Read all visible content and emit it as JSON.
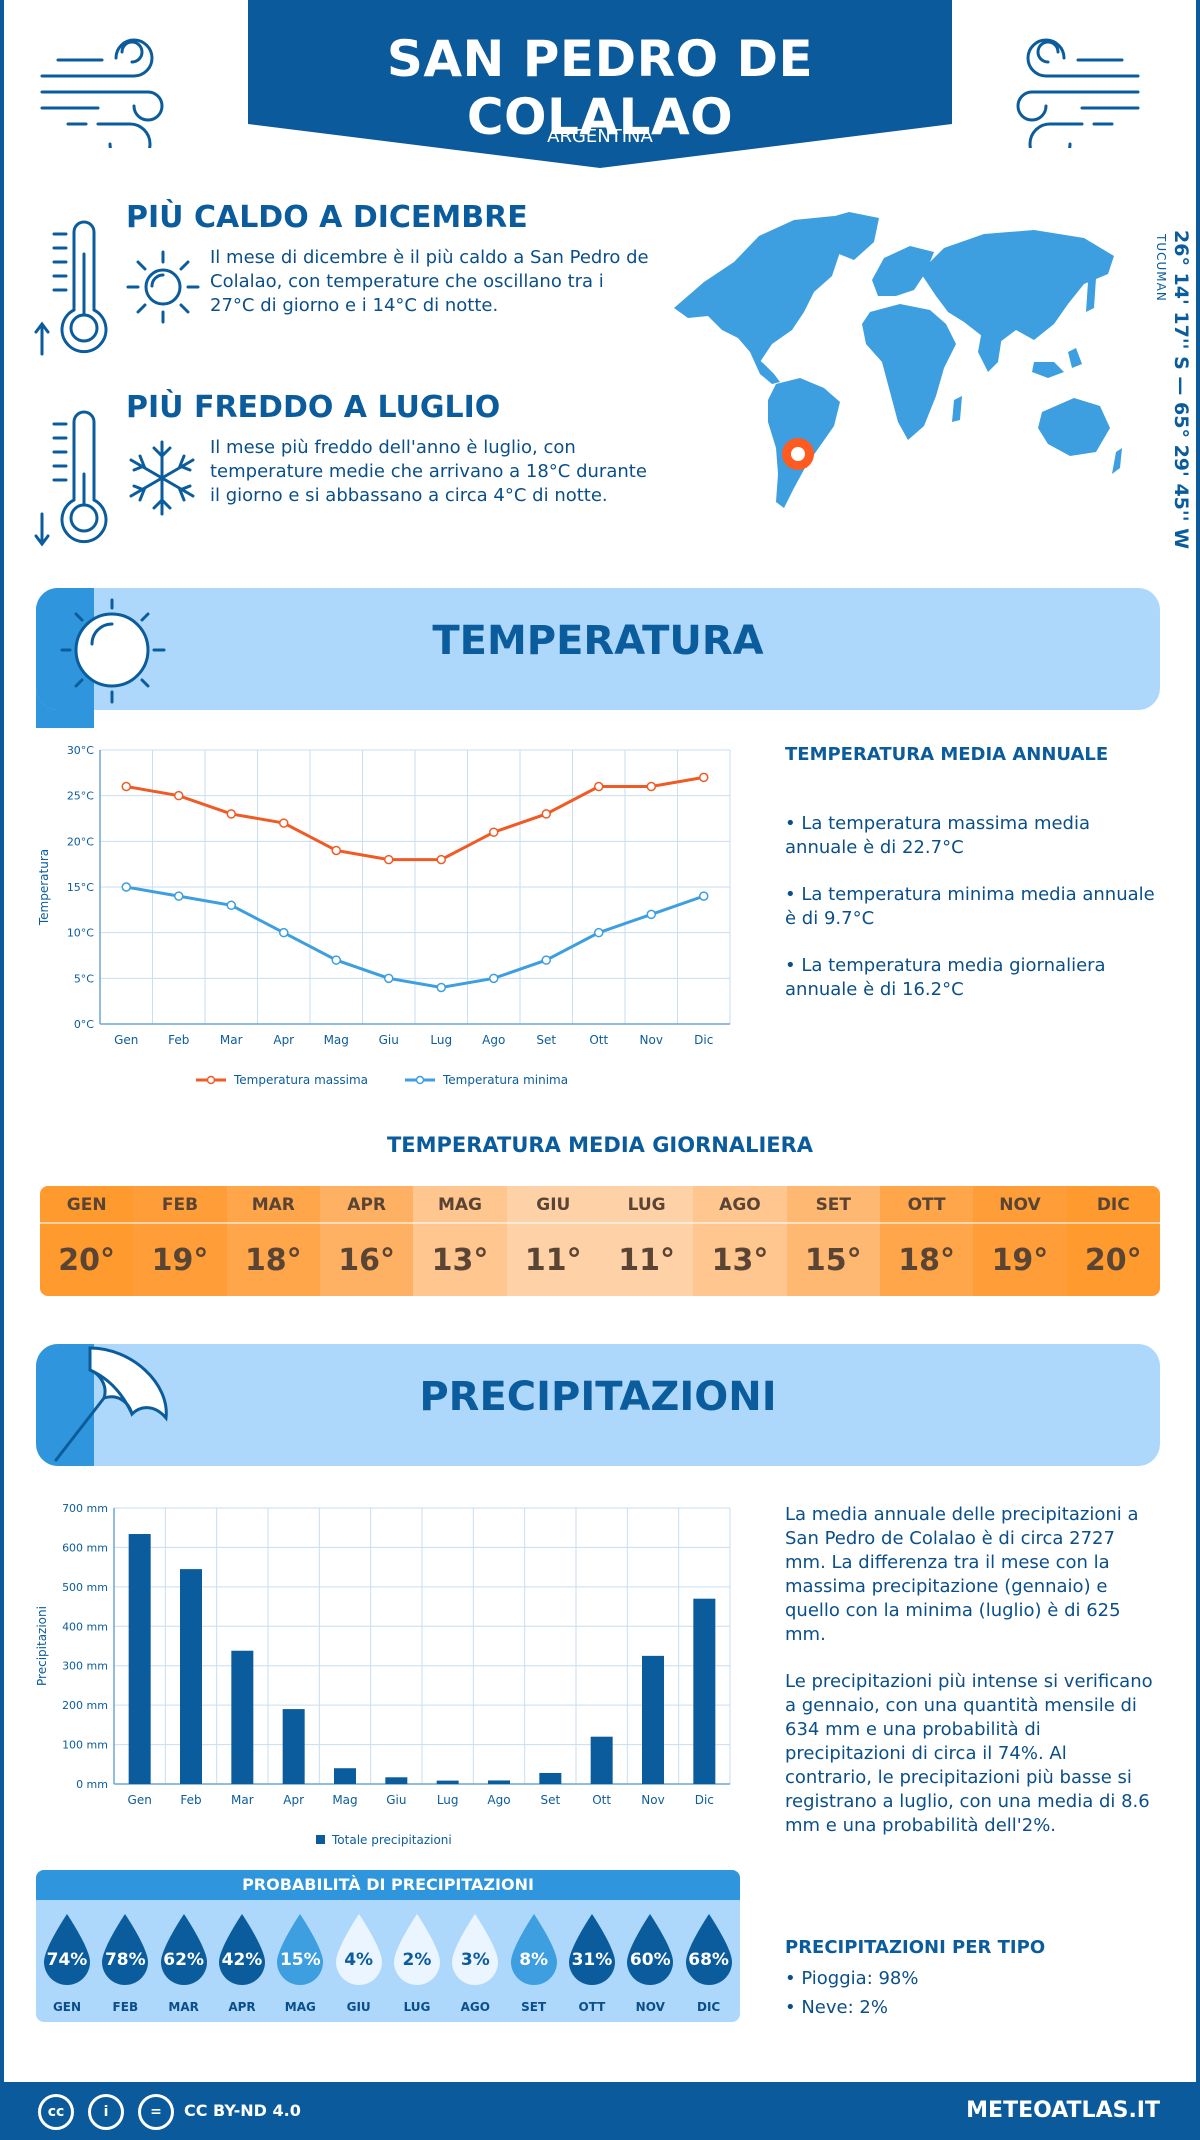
{
  "header": {
    "title": "SAN PEDRO DE COLALAO",
    "country": "ARGENTINA"
  },
  "facts": [
    {
      "title": "PIÙ CALDO A DICEMBRE",
      "text": "Il mese di dicembre è il più caldo a San Pedro de Colalao, con temperature che oscillano tra i 27°C di giorno e i 14°C di notte.",
      "icon": "sun-icon"
    },
    {
      "title": "PIÙ FREDDO A LUGLIO",
      "text": "Il mese più freddo dell'anno è luglio, con temperature medie che arrivano a 18°C durante il giorno e si abbassano a circa 4°C di notte.",
      "icon": "snowflake-icon"
    }
  ],
  "location": {
    "coordinates": "26° 14' 17'' S — 65° 29' 45'' W",
    "region": "TUCUMAN"
  },
  "temperature_section": {
    "title": "TEMPERATURA",
    "side_title": "TEMPERATURA MEDIA ANNUALE",
    "bullets": [
      "• La temperatura massima media annuale è di 22.7°C",
      "• La temperatura minima media annuale è di 9.7°C",
      "• La temperatura media giornaliera annuale è di 16.2°C"
    ]
  },
  "daily": {
    "title": "TEMPERATURA MEDIA GIORNALIERA",
    "months": [
      "GEN",
      "FEB",
      "MAR",
      "APR",
      "MAG",
      "GIU",
      "LUG",
      "AGO",
      "SET",
      "OTT",
      "NOV",
      "DIC"
    ],
    "values": [
      "20°",
      "19°",
      "18°",
      "16°",
      "13°",
      "11°",
      "11°",
      "13°",
      "15°",
      "18°",
      "19°",
      "20°"
    ],
    "colors": [
      "#ff9a2e",
      "#ff9e38",
      "#ffa54a",
      "#ffb163",
      "#ffc68f",
      "#ffd1a6",
      "#ffd1a6",
      "#ffc68f",
      "#ffb872",
      "#ffa54a",
      "#ff9e38",
      "#ff9a2e"
    ]
  },
  "precip_section": {
    "title": "PRECIPITAZIONI",
    "paragraph1": "La media annuale delle precipitazioni a San Pedro de Colalao è di circa 2727 mm. La differenza tra il mese con la massima precipitazione (gennaio) e quello con la minima (luglio) è di 625 mm.",
    "paragraph2": "Le precipitazioni più intense si verificano a gennaio, con una quantità mensile di 634 mm e una probabilità di precipitazioni di circa il 74%. Al contrario, le precipitazioni più basse si registrano a luglio, con una media di 8.6 mm e una probabilità dell'2%.",
    "type_title": "PRECIPITAZIONI PER TIPO",
    "types": [
      "• Pioggia: 98%",
      "• Neve: 2%"
    ]
  },
  "probability": {
    "title": "PROBABILITÀ DI PRECIPITAZIONI",
    "months": [
      "GEN",
      "FEB",
      "MAR",
      "APR",
      "MAG",
      "GIU",
      "LUG",
      "AGO",
      "SET",
      "OTT",
      "NOV",
      "DIC"
    ],
    "values": [
      "74%",
      "78%",
      "62%",
      "42%",
      "15%",
      "4%",
      "2%",
      "3%",
      "8%",
      "31%",
      "60%",
      "68%"
    ],
    "levels": [
      74,
      78,
      62,
      42,
      15,
      4,
      2,
      3,
      8,
      31,
      60,
      68
    ]
  },
  "chart_data": [
    {
      "type": "line",
      "x": [
        "Gen",
        "Feb",
        "Mar",
        "Apr",
        "Mag",
        "Giu",
        "Lug",
        "Ago",
        "Set",
        "Ott",
        "Nov",
        "Dic"
      ],
      "series": [
        {
          "name": "Temperatura massima",
          "values": [
            26,
            25,
            23,
            22,
            19,
            18,
            18,
            21,
            23,
            26,
            26,
            27
          ],
          "color": "#f05a24"
        },
        {
          "name": "Temperatura minima",
          "values": [
            15,
            14,
            13,
            10,
            7,
            5,
            4,
            5,
            7,
            10,
            12,
            14
          ],
          "color": "#3d9ee0"
        }
      ],
      "ylabel": "Temperatura",
      "yticks": [
        "0°C",
        "5°C",
        "10°C",
        "15°C",
        "20°C",
        "25°C",
        "30°C"
      ],
      "ylim": [
        0,
        30
      ],
      "grid": true,
      "legend": "bottom"
    },
    {
      "type": "bar",
      "categories": [
        "Gen",
        "Feb",
        "Mar",
        "Apr",
        "Mag",
        "Giu",
        "Lug",
        "Ago",
        "Set",
        "Ott",
        "Nov",
        "Dic"
      ],
      "series": [
        {
          "name": "Totale precipitazioni",
          "values": [
            634,
            545,
            338,
            190,
            40,
            17,
            8.6,
            9,
            28,
            120,
            325,
            470
          ],
          "color": "#0b5c9c"
        }
      ],
      "ylabel": "Precipitazioni",
      "yticks": [
        "0 mm",
        "100 mm",
        "200 mm",
        "300 mm",
        "400 mm",
        "500 mm",
        "600 mm",
        "700 mm"
      ],
      "ylim": [
        0,
        700
      ],
      "grid": true,
      "legend": "bottom"
    }
  ],
  "footer": {
    "license": "CC BY-ND 4.0",
    "site": "METEOATLAS.IT"
  }
}
